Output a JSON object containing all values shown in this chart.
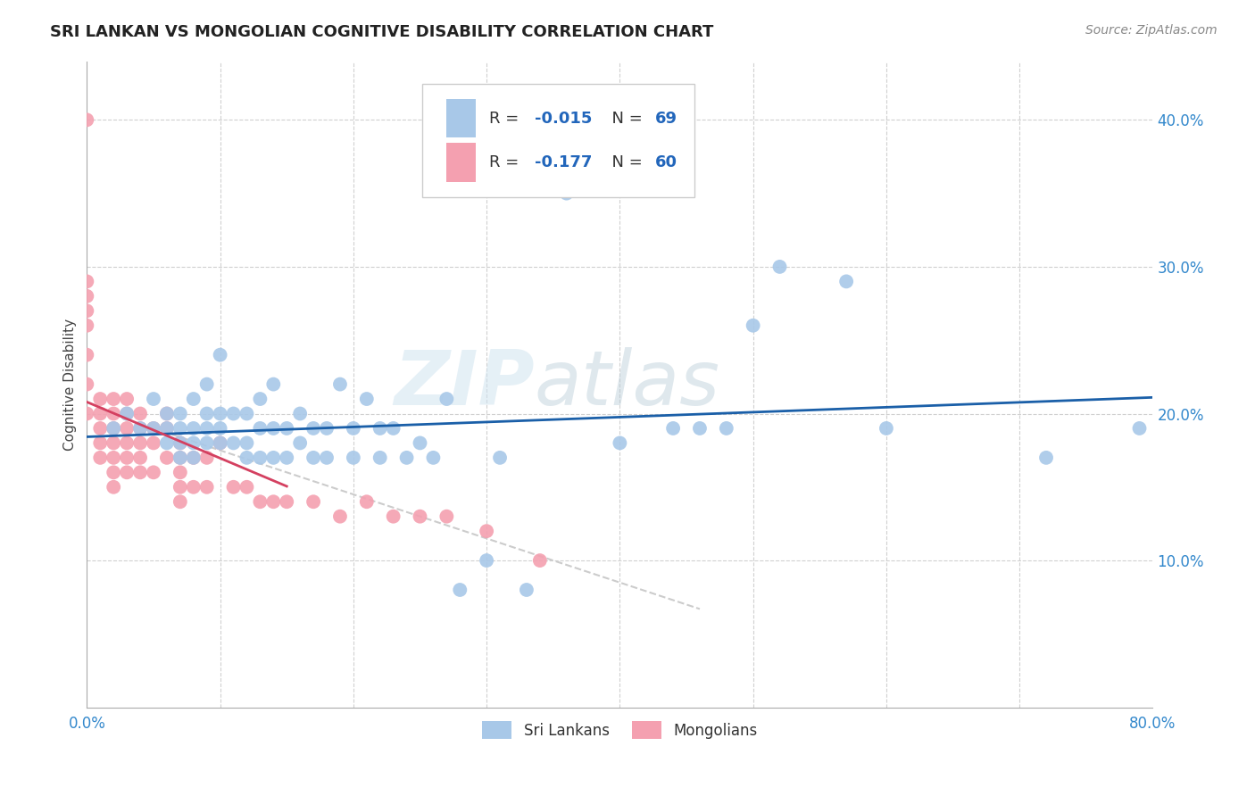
{
  "title": "SRI LANKAN VS MONGOLIAN COGNITIVE DISABILITY CORRELATION CHART",
  "source": "Source: ZipAtlas.com",
  "ylabel": "Cognitive Disability",
  "xlim": [
    0.0,
    0.8
  ],
  "ylim": [
    0.0,
    0.44
  ],
  "sri_lankan_R": -0.015,
  "sri_lankan_N": 69,
  "mongolian_R": -0.177,
  "mongolian_N": 60,
  "sri_lankan_color": "#a8c8e8",
  "mongolian_color": "#f4a0b0",
  "sri_lankan_line_color": "#1a5fa8",
  "mongolian_line_color": "#d44060",
  "dashed_line_color": "#cccccc",
  "watermark_zip": "ZIP",
  "watermark_atlas": "atlas",
  "legend_sri_label": "Sri Lankans",
  "legend_mongolian_label": "Mongolians",
  "sri_lankans_x": [
    0.02,
    0.03,
    0.04,
    0.05,
    0.05,
    0.06,
    0.06,
    0.06,
    0.07,
    0.07,
    0.07,
    0.07,
    0.08,
    0.08,
    0.08,
    0.08,
    0.09,
    0.09,
    0.09,
    0.09,
    0.1,
    0.1,
    0.1,
    0.1,
    0.11,
    0.11,
    0.12,
    0.12,
    0.12,
    0.13,
    0.13,
    0.13,
    0.14,
    0.14,
    0.14,
    0.15,
    0.15,
    0.16,
    0.16,
    0.17,
    0.17,
    0.18,
    0.18,
    0.19,
    0.2,
    0.2,
    0.21,
    0.22,
    0.22,
    0.23,
    0.24,
    0.25,
    0.26,
    0.27,
    0.28,
    0.3,
    0.31,
    0.33,
    0.36,
    0.4,
    0.44,
    0.46,
    0.48,
    0.5,
    0.52,
    0.57,
    0.6,
    0.72,
    0.79
  ],
  "sri_lankans_y": [
    0.19,
    0.2,
    0.19,
    0.19,
    0.21,
    0.18,
    0.19,
    0.2,
    0.17,
    0.18,
    0.19,
    0.2,
    0.17,
    0.18,
    0.19,
    0.21,
    0.18,
    0.19,
    0.2,
    0.22,
    0.18,
    0.19,
    0.2,
    0.24,
    0.18,
    0.2,
    0.17,
    0.18,
    0.2,
    0.17,
    0.19,
    0.21,
    0.17,
    0.19,
    0.22,
    0.17,
    0.19,
    0.18,
    0.2,
    0.17,
    0.19,
    0.17,
    0.19,
    0.22,
    0.17,
    0.19,
    0.21,
    0.17,
    0.19,
    0.19,
    0.17,
    0.18,
    0.17,
    0.21,
    0.08,
    0.1,
    0.17,
    0.08,
    0.35,
    0.18,
    0.19,
    0.19,
    0.19,
    0.26,
    0.3,
    0.29,
    0.19,
    0.17,
    0.19
  ],
  "mongolians_x": [
    0.0,
    0.0,
    0.0,
    0.0,
    0.0,
    0.0,
    0.0,
    0.0,
    0.01,
    0.01,
    0.01,
    0.01,
    0.01,
    0.02,
    0.02,
    0.02,
    0.02,
    0.02,
    0.02,
    0.02,
    0.03,
    0.03,
    0.03,
    0.03,
    0.03,
    0.03,
    0.04,
    0.04,
    0.04,
    0.04,
    0.04,
    0.05,
    0.05,
    0.05,
    0.06,
    0.06,
    0.06,
    0.07,
    0.07,
    0.07,
    0.07,
    0.07,
    0.08,
    0.08,
    0.09,
    0.09,
    0.1,
    0.11,
    0.12,
    0.13,
    0.14,
    0.15,
    0.17,
    0.19,
    0.21,
    0.23,
    0.25,
    0.27,
    0.3,
    0.34
  ],
  "mongolians_y": [
    0.4,
    0.29,
    0.28,
    0.27,
    0.26,
    0.24,
    0.22,
    0.2,
    0.21,
    0.2,
    0.19,
    0.18,
    0.17,
    0.21,
    0.2,
    0.19,
    0.18,
    0.17,
    0.16,
    0.15,
    0.21,
    0.2,
    0.19,
    0.18,
    0.17,
    0.16,
    0.2,
    0.19,
    0.18,
    0.17,
    0.16,
    0.19,
    0.18,
    0.16,
    0.2,
    0.19,
    0.17,
    0.18,
    0.17,
    0.16,
    0.15,
    0.14,
    0.17,
    0.15,
    0.17,
    0.15,
    0.18,
    0.15,
    0.15,
    0.14,
    0.14,
    0.14,
    0.14,
    0.13,
    0.14,
    0.13,
    0.13,
    0.13,
    0.12,
    0.1
  ]
}
